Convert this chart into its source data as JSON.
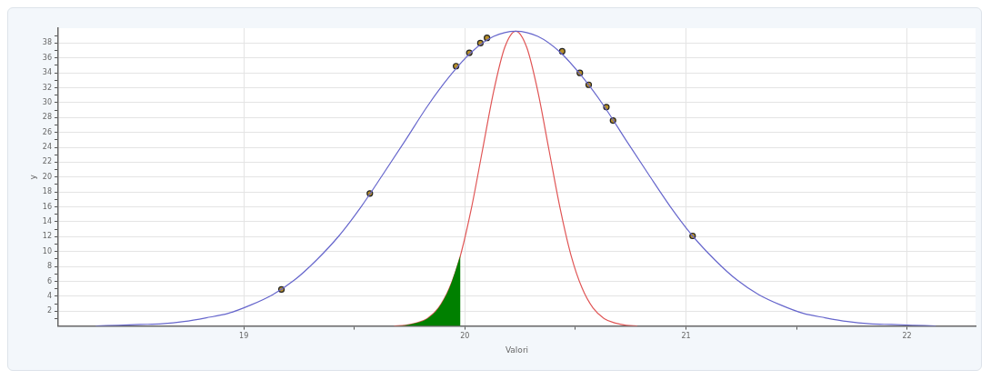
{
  "chart_data": {
    "type": "line",
    "xlabel": "Valori",
    "ylabel": "y",
    "xlim": [
      18.16,
      22.31
    ],
    "ylim": [
      0,
      40
    ],
    "xticks": [
      19,
      {
        "value": 19.5,
        "label": null
      },
      20,
      {
        "value": 20.5,
        "label": null
      },
      21,
      {
        "value": 21.5,
        "label": null
      },
      22
    ],
    "yticks": [
      {
        "value": 1,
        "label": null
      },
      2,
      {
        "value": 3,
        "label": null
      },
      4,
      {
        "value": 5,
        "label": null
      },
      6,
      {
        "value": 7,
        "label": null
      },
      8,
      {
        "value": 9,
        "label": null
      },
      10,
      {
        "value": 11,
        "label": null
      },
      12,
      {
        "value": 13,
        "label": null
      },
      14,
      {
        "value": 15,
        "label": null
      },
      16,
      {
        "value": 17,
        "label": null
      },
      18,
      {
        "value": 19,
        "label": null
      },
      20,
      {
        "value": 21,
        "label": null
      },
      22,
      {
        "value": 23,
        "label": null
      },
      24,
      {
        "value": 25,
        "label": null
      },
      26,
      {
        "value": 27,
        "label": null
      },
      28,
      {
        "value": 29,
        "label": null
      },
      30,
      {
        "value": 31,
        "label": null
      },
      32,
      {
        "value": 33,
        "label": null
      },
      34,
      {
        "value": 35,
        "label": null
      },
      36,
      {
        "value": 37,
        "label": null
      },
      38,
      {
        "value": 39,
        "label": null
      }
    ],
    "grid": true,
    "line_style": "solid",
    "series": [
      {
        "type": "area",
        "marker": "none",
        "color": "#008000",
        "x": [
          19.68,
          19.73,
          19.78,
          19.83,
          19.88,
          19.93,
          19.98
        ],
        "values": [
          0.0,
          0.1,
          0.4,
          1.0,
          2.4,
          5.1,
          9.5
        ]
      },
      {
        "marker": "none",
        "color": "#6666cc",
        "x": [
          18.33,
          18.43,
          18.53,
          18.63,
          18.73,
          18.83,
          18.93,
          19.03,
          19.13,
          19.23,
          19.33,
          19.43,
          19.53,
          19.63,
          19.73,
          19.83,
          19.93,
          20.03,
          20.13,
          20.23,
          20.33,
          20.43,
          20.53,
          20.63,
          20.73,
          20.83,
          20.93,
          21.03,
          21.13,
          21.23,
          21.33,
          21.43,
          21.53,
          21.63,
          21.73,
          21.83,
          21.93,
          22.03,
          22.13
        ],
        "values": [
          0.0,
          0.1,
          0.2,
          0.3,
          0.6,
          1.1,
          1.7,
          2.8,
          4.2,
          6.2,
          8.9,
          12.1,
          16.0,
          20.4,
          24.9,
          29.5,
          33.5,
          36.8,
          38.9,
          39.6,
          38.9,
          36.8,
          33.5,
          29.5,
          24.9,
          20.4,
          16.0,
          12.1,
          8.9,
          6.2,
          4.2,
          2.8,
          1.7,
          1.1,
          0.6,
          0.3,
          0.2,
          0.1,
          0.0
        ]
      },
      {
        "marker": "none",
        "color": "#e05555",
        "x": [
          19.68,
          19.73,
          19.78,
          19.83,
          19.88,
          19.93,
          19.98,
          20.03,
          20.08,
          20.13,
          20.18,
          20.23,
          20.28,
          20.33,
          20.38,
          20.43,
          20.48,
          20.53,
          20.58,
          20.63,
          20.68,
          20.73,
          20.78
        ],
        "values": [
          0.0,
          0.1,
          0.4,
          1.0,
          2.4,
          5.1,
          9.5,
          15.9,
          23.7,
          31.5,
          37.4,
          39.6,
          37.4,
          31.5,
          23.7,
          15.9,
          9.5,
          5.1,
          2.4,
          1.0,
          0.4,
          0.1,
          0.0
        ]
      },
      {
        "type": "scatter",
        "marker": "circle",
        "color": "#b8902a",
        "x": [
          19.17,
          19.57,
          19.96,
          20.02,
          20.07,
          20.1,
          20.44,
          20.52,
          20.56,
          20.64,
          20.67,
          21.03
        ],
        "values": [
          4.9,
          17.8,
          34.9,
          36.7,
          38.0,
          38.7,
          36.9,
          34.0,
          32.4,
          29.4,
          27.6,
          12.1
        ]
      }
    ]
  }
}
